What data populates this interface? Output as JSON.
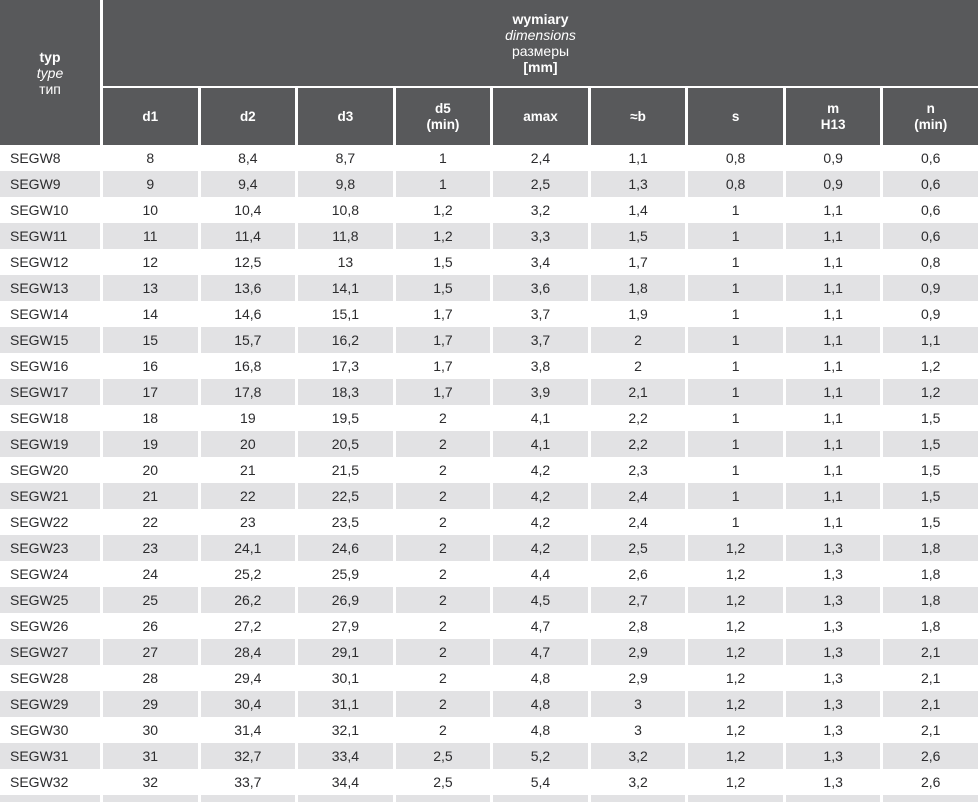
{
  "colors": {
    "header_bg": "#58595b",
    "alt_row_bg": "#e2e2e4",
    "header_text": "#ffffff",
    "body_text": "#2c2c2e"
  },
  "chart_data": {
    "type": "table",
    "corner": {
      "pl": "typ",
      "en": "type",
      "ru": "тип"
    },
    "span_header": {
      "pl": "wymiary",
      "en": "dimensions",
      "ru": "размеры",
      "unit": "[mm]"
    },
    "columns": [
      "d1",
      "d2",
      "d3",
      "d5\n(min)",
      "amax",
      "≈b",
      "s",
      "m\nH13",
      "n\n(min)"
    ],
    "rows": [
      [
        "SEGW8",
        "8",
        "8,4",
        "8,7",
        "1",
        "2,4",
        "1,1",
        "0,8",
        "0,9",
        "0,6"
      ],
      [
        "SEGW9",
        "9",
        "9,4",
        "9,8",
        "1",
        "2,5",
        "1,3",
        "0,8",
        "0,9",
        "0,6"
      ],
      [
        "SEGW10",
        "10",
        "10,4",
        "10,8",
        "1,2",
        "3,2",
        "1,4",
        "1",
        "1,1",
        "0,6"
      ],
      [
        "SEGW11",
        "11",
        "11,4",
        "11,8",
        "1,2",
        "3,3",
        "1,5",
        "1",
        "1,1",
        "0,6"
      ],
      [
        "SEGW12",
        "12",
        "12,5",
        "13",
        "1,5",
        "3,4",
        "1,7",
        "1",
        "1,1",
        "0,8"
      ],
      [
        "SEGW13",
        "13",
        "13,6",
        "14,1",
        "1,5",
        "3,6",
        "1,8",
        "1",
        "1,1",
        "0,9"
      ],
      [
        "SEGW14",
        "14",
        "14,6",
        "15,1",
        "1,7",
        "3,7",
        "1,9",
        "1",
        "1,1",
        "0,9"
      ],
      [
        "SEGW15",
        "15",
        "15,7",
        "16,2",
        "1,7",
        "3,7",
        "2",
        "1",
        "1,1",
        "1,1"
      ],
      [
        "SEGW16",
        "16",
        "16,8",
        "17,3",
        "1,7",
        "3,8",
        "2",
        "1",
        "1,1",
        "1,2"
      ],
      [
        "SEGW17",
        "17",
        "17,8",
        "18,3",
        "1,7",
        "3,9",
        "2,1",
        "1",
        "1,1",
        "1,2"
      ],
      [
        "SEGW18",
        "18",
        "19",
        "19,5",
        "2",
        "4,1",
        "2,2",
        "1",
        "1,1",
        "1,5"
      ],
      [
        "SEGW19",
        "19",
        "20",
        "20,5",
        "2",
        "4,1",
        "2,2",
        "1",
        "1,1",
        "1,5"
      ],
      [
        "SEGW20",
        "20",
        "21",
        "21,5",
        "2",
        "4,2",
        "2,3",
        "1",
        "1,1",
        "1,5"
      ],
      [
        "SEGW21",
        "21",
        "22",
        "22,5",
        "2",
        "4,2",
        "2,4",
        "1",
        "1,1",
        "1,5"
      ],
      [
        "SEGW22",
        "22",
        "23",
        "23,5",
        "2",
        "4,2",
        "2,4",
        "1",
        "1,1",
        "1,5"
      ],
      [
        "SEGW23",
        "23",
        "24,1",
        "24,6",
        "2",
        "4,2",
        "2,5",
        "1,2",
        "1,3",
        "1,8"
      ],
      [
        "SEGW24",
        "24",
        "25,2",
        "25,9",
        "2",
        "4,4",
        "2,6",
        "1,2",
        "1,3",
        "1,8"
      ],
      [
        "SEGW25",
        "25",
        "26,2",
        "26,9",
        "2",
        "4,5",
        "2,7",
        "1,2",
        "1,3",
        "1,8"
      ],
      [
        "SEGW26",
        "26",
        "27,2",
        "27,9",
        "2",
        "4,7",
        "2,8",
        "1,2",
        "1,3",
        "1,8"
      ],
      [
        "SEGW27",
        "27",
        "28,4",
        "29,1",
        "2",
        "4,7",
        "2,9",
        "1,2",
        "1,3",
        "2,1"
      ],
      [
        "SEGW28",
        "28",
        "29,4",
        "30,1",
        "2",
        "4,8",
        "2,9",
        "1,2",
        "1,3",
        "2,1"
      ],
      [
        "SEGW29",
        "29",
        "30,4",
        "31,1",
        "2",
        "4,8",
        "3",
        "1,2",
        "1,3",
        "2,1"
      ],
      [
        "SEGW30",
        "30",
        "31,4",
        "32,1",
        "2",
        "4,8",
        "3",
        "1,2",
        "1,3",
        "2,1"
      ],
      [
        "SEGW31",
        "31",
        "32,7",
        "33,4",
        "2,5",
        "5,2",
        "3,2",
        "1,2",
        "1,3",
        "2,6"
      ],
      [
        "SEGW32",
        "32",
        "33,7",
        "34,4",
        "2,5",
        "5,4",
        "3,2",
        "1,2",
        "1,3",
        "2,6"
      ]
    ]
  }
}
